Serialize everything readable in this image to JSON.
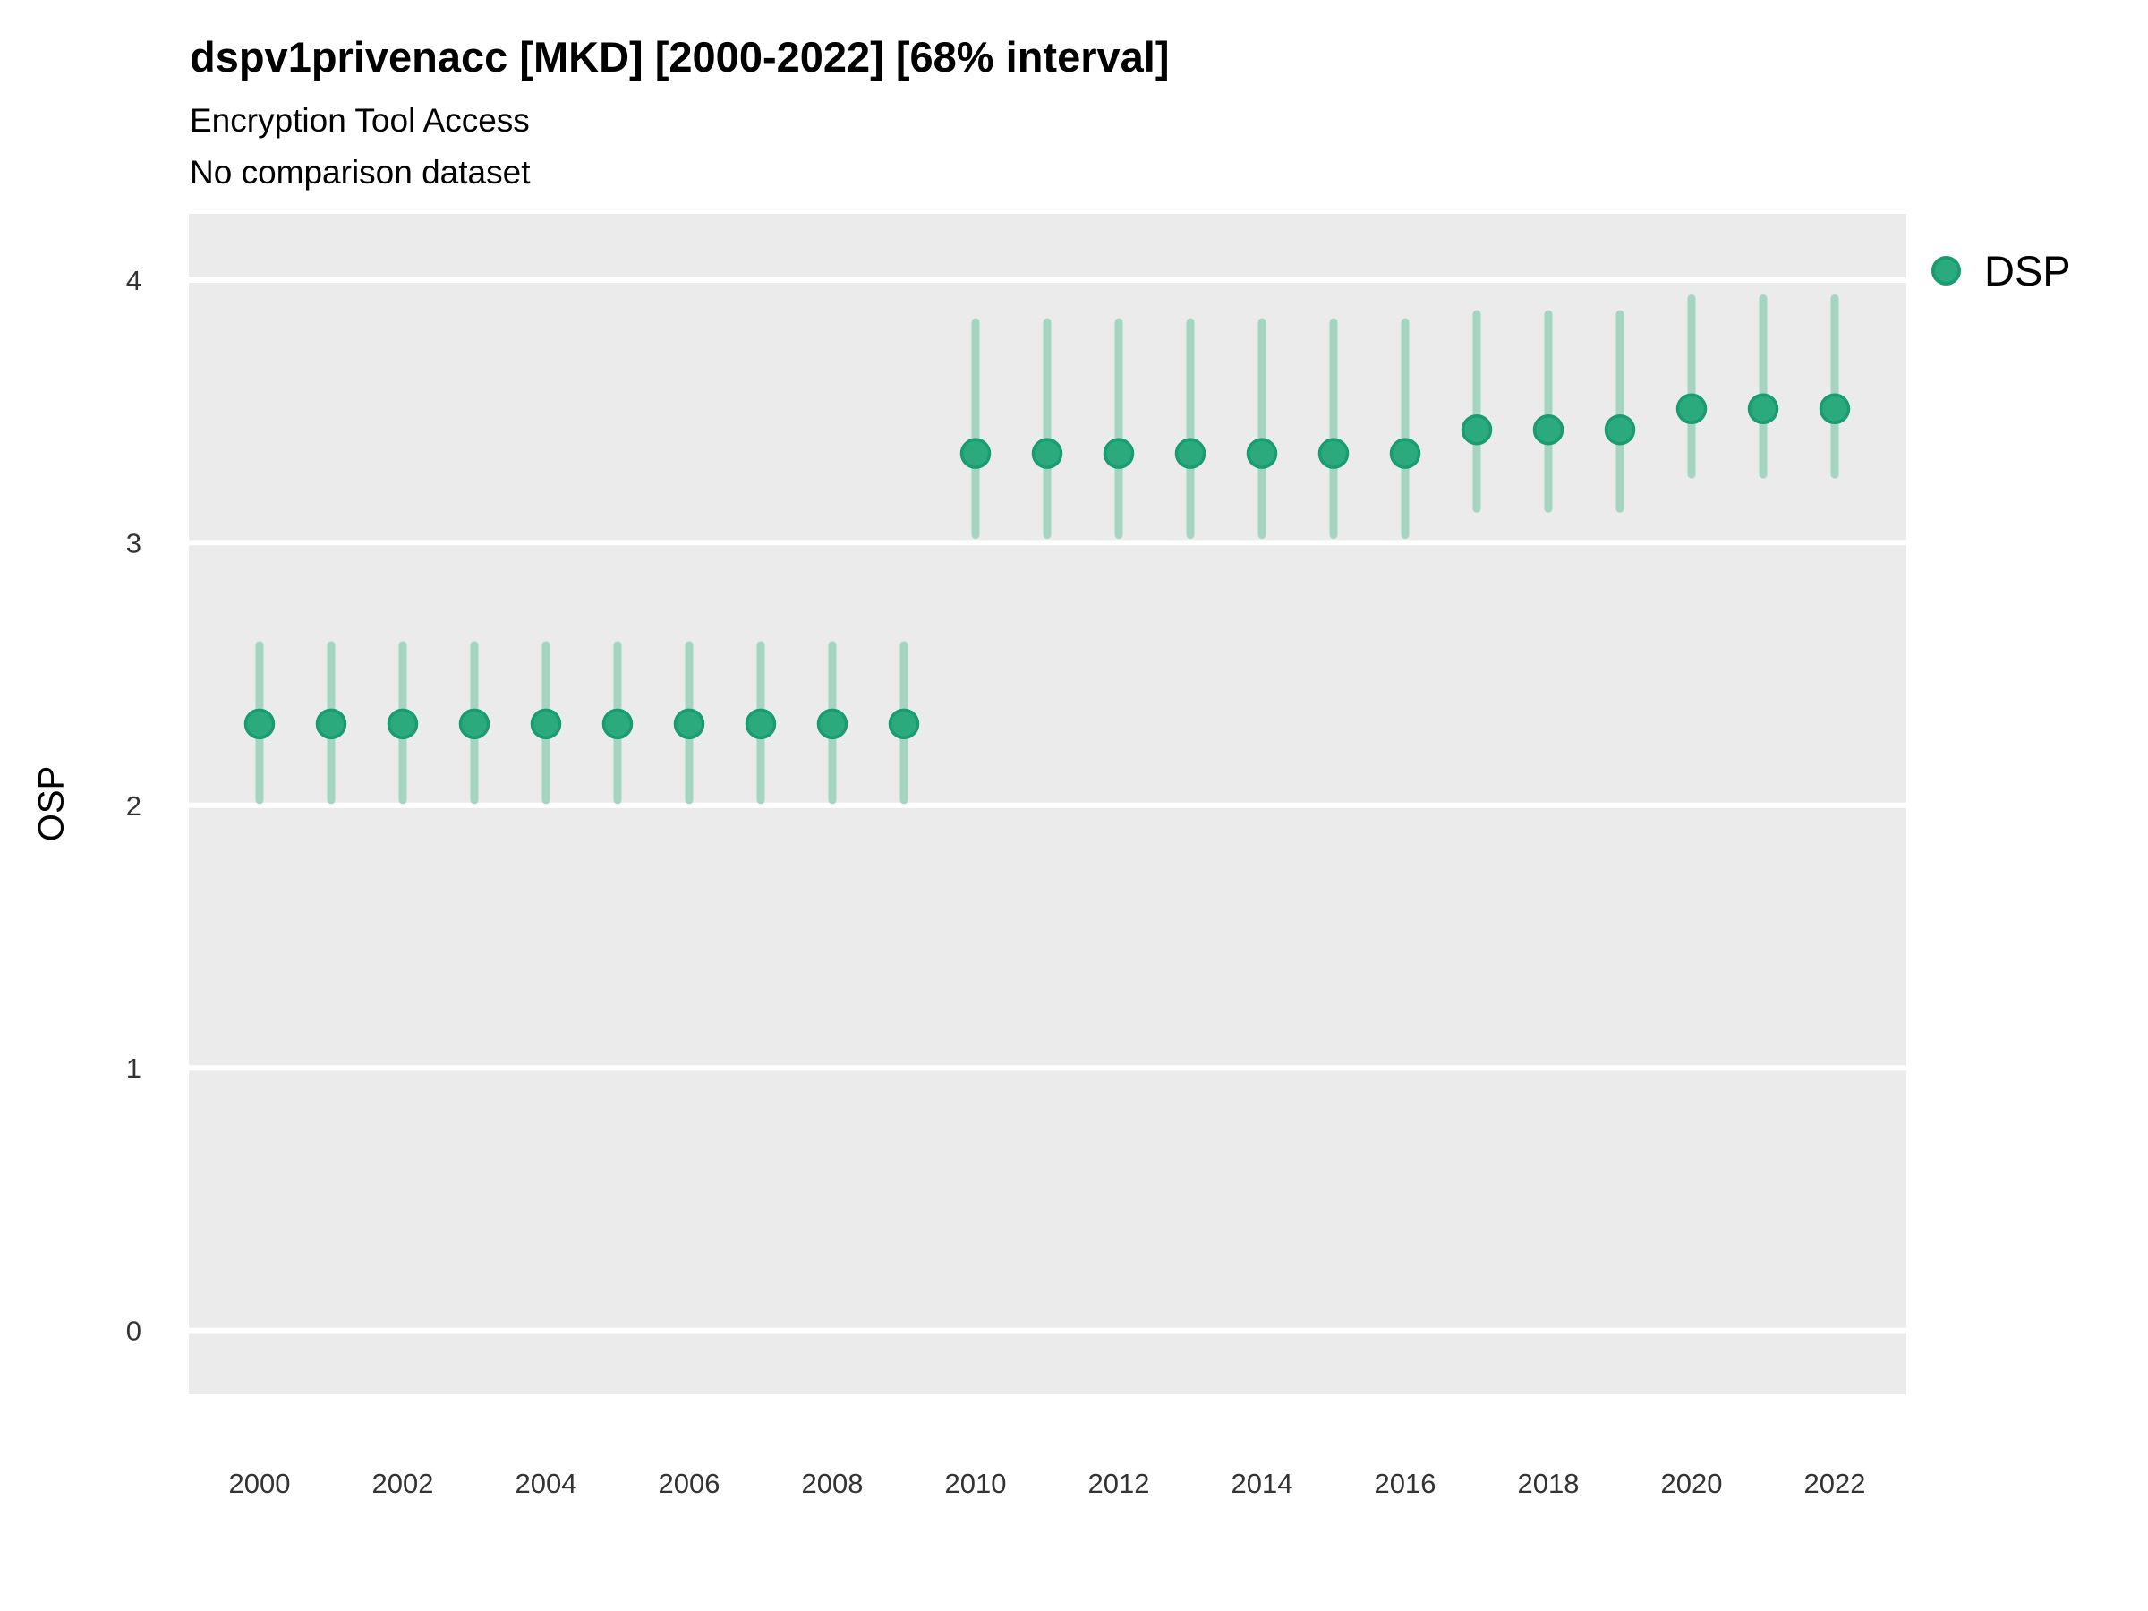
{
  "title": "dspv1privenacc [MKD] [2000-2022] [68% interval]",
  "subtitle": "Encryption Tool Access",
  "subtitle2": "No comparison dataset",
  "legend": {
    "position": "right",
    "items": [
      {
        "label": "DSP",
        "fill": "#2bab7d",
        "stroke": "#1a9c72"
      }
    ]
  },
  "colors": {
    "background": "#ffffff",
    "panel": "#ebebeb",
    "gridline": "#ffffff",
    "point_fill": "#2bab7d",
    "point_stroke": "#1a9c72",
    "errorbar": "#a3d5c1",
    "tick_text": "#333333",
    "text": "#000000"
  },
  "chart_data": {
    "type": "scatter",
    "title": "dspv1privenacc [MKD] [2000-2022] [68% interval]",
    "subtitle": "Encryption Tool Access",
    "note": "No comparison dataset",
    "interval_label": "68% interval",
    "xlabel": "",
    "ylabel": "OSP",
    "grid": "white major gridlines on grey panel, no minor gridlines",
    "legend_position": "right",
    "xlim": [
      1999,
      2023
    ],
    "ylim": [
      -0.24,
      4.25
    ],
    "x_ticks": [
      2000,
      2002,
      2004,
      2006,
      2008,
      2010,
      2012,
      2014,
      2016,
      2018,
      2020,
      2022
    ],
    "y_ticks": [
      0,
      1,
      2,
      3,
      4
    ],
    "x": [
      2000,
      2001,
      2002,
      2003,
      2004,
      2005,
      2006,
      2007,
      2008,
      2009,
      2010,
      2011,
      2012,
      2013,
      2014,
      2015,
      2016,
      2017,
      2018,
      2019,
      2020,
      2021,
      2022
    ],
    "series": [
      {
        "name": "DSP",
        "values": [
          2.31,
          2.31,
          2.31,
          2.31,
          2.31,
          2.31,
          2.31,
          2.31,
          2.31,
          2.31,
          3.34,
          3.34,
          3.34,
          3.34,
          3.34,
          3.34,
          3.34,
          3.43,
          3.43,
          3.43,
          3.51,
          3.51,
          3.51
        ],
        "lower": [
          2.02,
          2.02,
          2.02,
          2.02,
          2.02,
          2.02,
          2.02,
          2.02,
          2.02,
          2.02,
          3.03,
          3.03,
          3.03,
          3.03,
          3.03,
          3.03,
          3.03,
          3.13,
          3.13,
          3.13,
          3.26,
          3.26,
          3.26
        ],
        "upper": [
          2.61,
          2.61,
          2.61,
          2.61,
          2.61,
          2.61,
          2.61,
          2.61,
          2.61,
          2.61,
          3.84,
          3.84,
          3.84,
          3.84,
          3.84,
          3.84,
          3.84,
          3.87,
          3.87,
          3.87,
          3.93,
          3.93,
          3.93
        ]
      }
    ]
  }
}
